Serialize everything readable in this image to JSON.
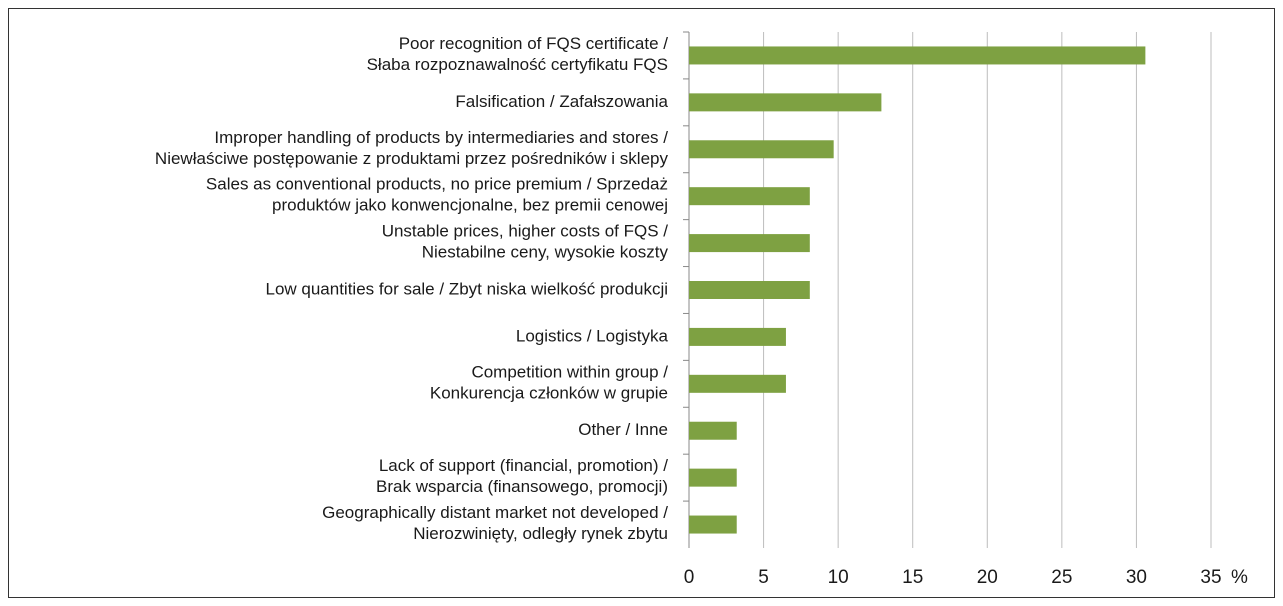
{
  "chart_data": {
    "type": "bar",
    "orientation": "horizontal",
    "categories": [
      "Poor recognition of FQS certificate /\nSłaba rozpoznawalność certyfikatu FQS",
      "Falsification / Zafałszowania",
      "Improper handling of products by intermediaries and stores /\nNiewłaściwe postępowanie z produktami przez pośredników i sklepy",
      "Sales as conventional products, no price premium / Sprzedaż\nproduktów jako konwencjonalne, bez premii cenowej",
      "Unstable prices, higher costs of FQS /\nNiestabilne ceny, wysokie koszty",
      "Low quantities for sale / Zbyt niska wielkość produkcji",
      "Logistics / Logistyka",
      "Competition within group /\nKonkurencja członków w grupie",
      "Other / Inne",
      "Lack of support (financial, promotion) /\nBrak wsparcia (finansowego, promocji)",
      "Geographically distant market not developed /\nNierozwinięty, odległy rynek zbytu"
    ],
    "values": [
      30.6,
      12.9,
      9.7,
      8.1,
      8.1,
      8.1,
      6.5,
      6.5,
      3.2,
      3.2,
      3.2
    ],
    "color": "#7ea142",
    "x_label": "%",
    "xlim": [
      0,
      35
    ],
    "xticks": [
      0,
      5,
      10,
      15,
      20,
      25,
      30,
      35
    ],
    "grid": true
  }
}
